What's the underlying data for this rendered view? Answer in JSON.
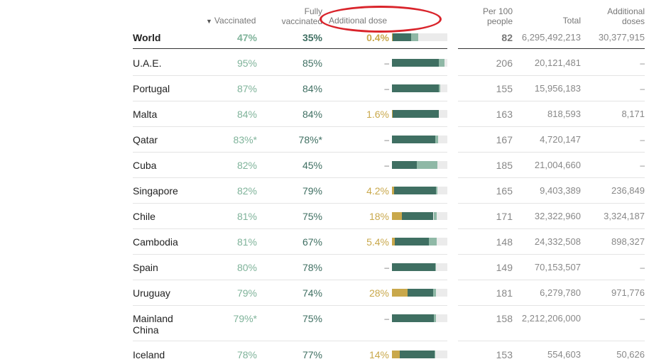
{
  "headers": {
    "vaccinated": "Vaccinated",
    "sort_marker": "▼",
    "fully": [
      "Fully",
      "vaccinated"
    ],
    "additional_dose": "Additional dose",
    "per100": [
      "Per 100",
      "people"
    ],
    "total": "Total",
    "additional_doses": [
      "Additional",
      "doses"
    ]
  },
  "colors": {
    "fully": "#3f6f62",
    "partial": "#8fb8a6",
    "additional": "#c9a84b",
    "highlight_oval": "#d9242b"
  },
  "world": {
    "name": "World",
    "vaccinated": "47%",
    "fully": "35%",
    "additional": "0.4%",
    "per100": "82",
    "total": "6,295,492,213",
    "additional_doses": "30,377,915",
    "bar": {
      "vaccinated": 47,
      "fully": 35,
      "additional": 0.4
    }
  },
  "rows": [
    {
      "name": "U.A.E.",
      "vaccinated": "95%",
      "fully": "85%",
      "additional": "–",
      "per100": "206",
      "total": "20,121,481",
      "additional_doses": "–",
      "bar": {
        "vaccinated": 95,
        "fully": 85,
        "additional": 0
      }
    },
    {
      "name": "Portugal",
      "vaccinated": "87%",
      "fully": "84%",
      "additional": "–",
      "per100": "155",
      "total": "15,956,183",
      "additional_doses": "–",
      "bar": {
        "vaccinated": 87,
        "fully": 84,
        "additional": 0
      }
    },
    {
      "name": "Malta",
      "vaccinated": "84%",
      "fully": "84%",
      "additional": "1.6%",
      "per100": "163",
      "total": "818,593",
      "additional_doses": "8,171",
      "bar": {
        "vaccinated": 84,
        "fully": 84,
        "additional": 1.6
      }
    },
    {
      "name": "Qatar",
      "vaccinated": "83%*",
      "fully": "78%*",
      "additional": "–",
      "per100": "167",
      "total": "4,720,147",
      "additional_doses": "–",
      "bar": {
        "vaccinated": 83,
        "fully": 78,
        "additional": 0
      }
    },
    {
      "name": "Cuba",
      "vaccinated": "82%",
      "fully": "45%",
      "additional": "–",
      "per100": "185",
      "total": "21,004,660",
      "additional_doses": "–",
      "bar": {
        "vaccinated": 82,
        "fully": 45,
        "additional": 0
      }
    },
    {
      "name": "Singapore",
      "vaccinated": "82%",
      "fully": "79%",
      "additional": "4.2%",
      "per100": "165",
      "total": "9,403,389",
      "additional_doses": "236,849",
      "bar": {
        "vaccinated": 82,
        "fully": 79,
        "additional": 4.2
      }
    },
    {
      "name": "Chile",
      "vaccinated": "81%",
      "fully": "75%",
      "additional": "18%",
      "per100": "171",
      "total": "32,322,960",
      "additional_doses": "3,324,187",
      "bar": {
        "vaccinated": 81,
        "fully": 75,
        "additional": 18
      }
    },
    {
      "name": "Cambodia",
      "vaccinated": "81%",
      "fully": "67%",
      "additional": "5.4%",
      "per100": "148",
      "total": "24,332,508",
      "additional_doses": "898,327",
      "bar": {
        "vaccinated": 81,
        "fully": 67,
        "additional": 5.4
      }
    },
    {
      "name": "Spain",
      "vaccinated": "80%",
      "fully": "78%",
      "additional": "–",
      "per100": "149",
      "total": "70,153,507",
      "additional_doses": "–",
      "bar": {
        "vaccinated": 80,
        "fully": 78,
        "additional": 0
      }
    },
    {
      "name": "Uruguay",
      "vaccinated": "79%",
      "fully": "74%",
      "additional": "28%",
      "per100": "181",
      "total": "6,279,780",
      "additional_doses": "971,776",
      "bar": {
        "vaccinated": 79,
        "fully": 74,
        "additional": 28
      }
    },
    {
      "name": "Mainland\nChina",
      "vaccinated": "79%*",
      "fully": "75%",
      "additional": "–",
      "per100": "158",
      "total": "2,212,206,000",
      "additional_doses": "–",
      "bar": {
        "vaccinated": 79,
        "fully": 75,
        "additional": 0
      }
    },
    {
      "name": "Iceland",
      "vaccinated": "78%",
      "fully": "77%",
      "additional": "14%",
      "per100": "153",
      "total": "554,603",
      "additional_doses": "50,626",
      "bar": {
        "vaccinated": 78,
        "fully": 77,
        "additional": 14
      }
    }
  ]
}
